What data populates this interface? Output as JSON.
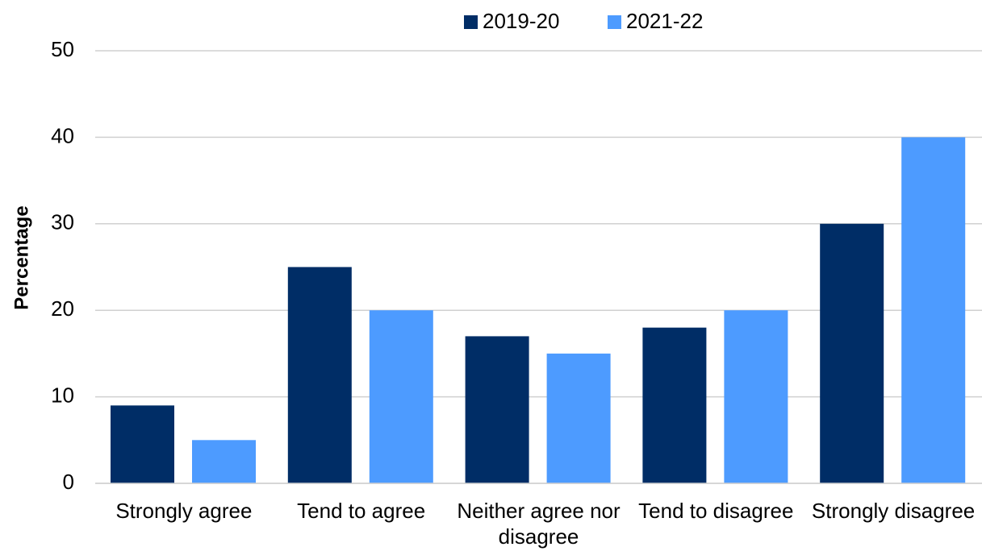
{
  "chart_data": {
    "type": "bar",
    "y_label": "Percentage",
    "categories": [
      "Strongly agree",
      "Tend to agree",
      "Neither agree nor disagree",
      "Tend to disagree",
      "Strongly disagree"
    ],
    "series": [
      {
        "name": "2019-20",
        "color": "#002d66",
        "values": [
          9,
          25,
          17,
          18,
          30
        ]
      },
      {
        "name": "2021-22",
        "color": "#4d9bff",
        "values": [
          5,
          20,
          15,
          20,
          40
        ]
      }
    ],
    "ylim": [
      0,
      50
    ],
    "yticks": [
      0,
      10,
      20,
      30,
      40,
      50
    ],
    "grid": true,
    "legend": "top"
  }
}
